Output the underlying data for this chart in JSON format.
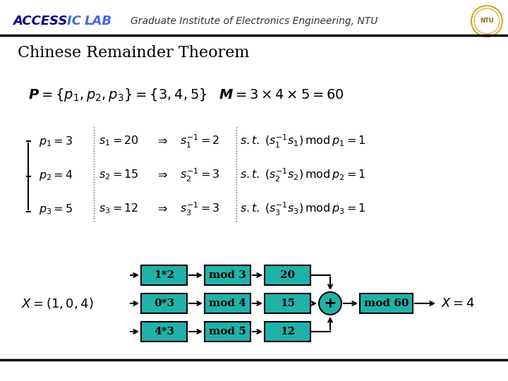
{
  "bg_color": "#ffffff",
  "header_line_color": "#000000",
  "footer_line_color": "#000000",
  "access_color": "#00008B",
  "ic_lab_color": "#4169E1",
  "header_text": "Graduate Institute of Electronics Engineering, NTU",
  "title": "Chinese Remainder Theorem",
  "teal_color": "#00CED1",
  "box_fill": "#20B2AA",
  "box_edge": "#000000",
  "arrow_color": "#000000",
  "plus_fill": "#20B2AA",
  "rows": [
    {
      "input": "1*2",
      "mod": "mod 3",
      "val": "20",
      "row": 0
    },
    {
      "input": "0*3",
      "mod": "mod 4",
      "val": "15",
      "row": 1
    },
    {
      "input": "4*3",
      "mod": "mod 5",
      "val": "12",
      "row": 2
    }
  ],
  "x_label": "X = (1,0,4)",
  "x_result": "X = 4",
  "mod_final": "mod 60"
}
